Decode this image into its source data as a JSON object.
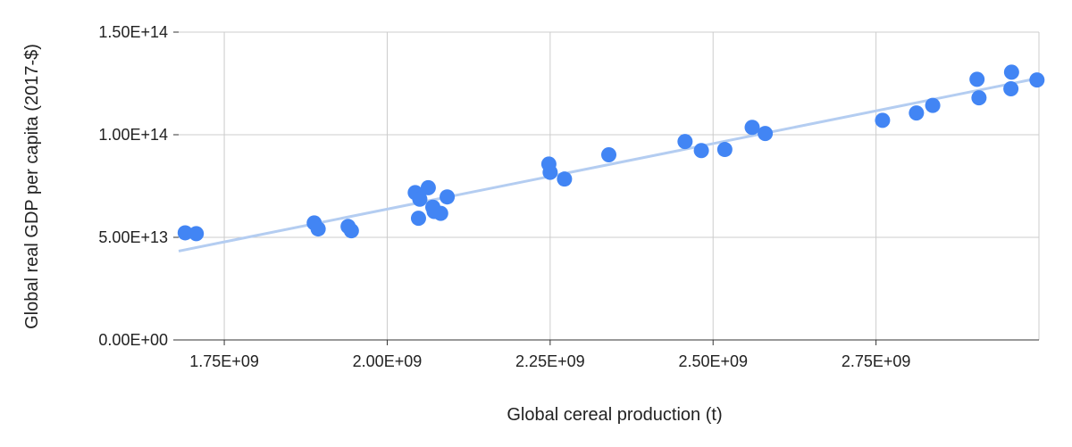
{
  "chart_data": {
    "type": "scatter",
    "title": "",
    "xlabel": "Global cereal production (t)",
    "ylabel": "Global real GDP per capita (2017-$)",
    "xlim": [
      1680000000,
      3000000000
    ],
    "ylim": [
      0,
      150000000000000
    ],
    "x_ticks": [
      {
        "value": 1750000000,
        "label": "1.75E+09"
      },
      {
        "value": 2000000000,
        "label": "2.00E+09"
      },
      {
        "value": 2250000000,
        "label": "2.25E+09"
      },
      {
        "value": 2500000000,
        "label": "2.50E+09"
      },
      {
        "value": 2750000000,
        "label": "2.75E+09"
      }
    ],
    "y_ticks": [
      {
        "value": 0,
        "label": "0.00E+00"
      },
      {
        "value": 50000000000000,
        "label": "5.00E+13"
      },
      {
        "value": 100000000000000,
        "label": "1.00E+14"
      },
      {
        "value": 150000000000000,
        "label": "1.50E+14"
      }
    ],
    "grid": true,
    "legend": "none",
    "point_color": "#4285f4",
    "trendline_color": "#b4cdf1",
    "trendline": {
      "x": [
        1680000000,
        3000000000
      ],
      "y": [
        43300000000000,
        127600000000000
      ]
    },
    "points": [
      {
        "x": 1690000000,
        "y": 52200000000000
      },
      {
        "x": 1707000000,
        "y": 51800000000000
      },
      {
        "x": 1888000000,
        "y": 57000000000000
      },
      {
        "x": 1894000000,
        "y": 54100000000000
      },
      {
        "x": 1940000000,
        "y": 55300000000000
      },
      {
        "x": 1945000000,
        "y": 53200000000000
      },
      {
        "x": 2043000000,
        "y": 71800000000000
      },
      {
        "x": 2050000000,
        "y": 68600000000000
      },
      {
        "x": 2048000000,
        "y": 59300000000000
      },
      {
        "x": 2063000000,
        "y": 74200000000000
      },
      {
        "x": 2070000000,
        "y": 64700000000000
      },
      {
        "x": 2072000000,
        "y": 62600000000000
      },
      {
        "x": 2082000000,
        "y": 61700000000000
      },
      {
        "x": 2092000000,
        "y": 69700000000000
      },
      {
        "x": 2248000000,
        "y": 85700000000000
      },
      {
        "x": 2250000000,
        "y": 81700000000000
      },
      {
        "x": 2272000000,
        "y": 78400000000000
      },
      {
        "x": 2340000000,
        "y": 90200000000000
      },
      {
        "x": 2457000000,
        "y": 96700000000000
      },
      {
        "x": 2482000000,
        "y": 92300000000000
      },
      {
        "x": 2518000000,
        "y": 92800000000000
      },
      {
        "x": 2560000000,
        "y": 103600000000000
      },
      {
        "x": 2580000000,
        "y": 100600000000000
      },
      {
        "x": 2760000000,
        "y": 107000000000000
      },
      {
        "x": 2812000000,
        "y": 110600000000000
      },
      {
        "x": 2837000000,
        "y": 114300000000000
      },
      {
        "x": 2905000000,
        "y": 127000000000000
      },
      {
        "x": 2908000000,
        "y": 118000000000000
      },
      {
        "x": 2958000000,
        "y": 130500000000000
      },
      {
        "x": 2957000000,
        "y": 122400000000000
      },
      {
        "x": 2997000000,
        "y": 126700000000000
      }
    ]
  }
}
